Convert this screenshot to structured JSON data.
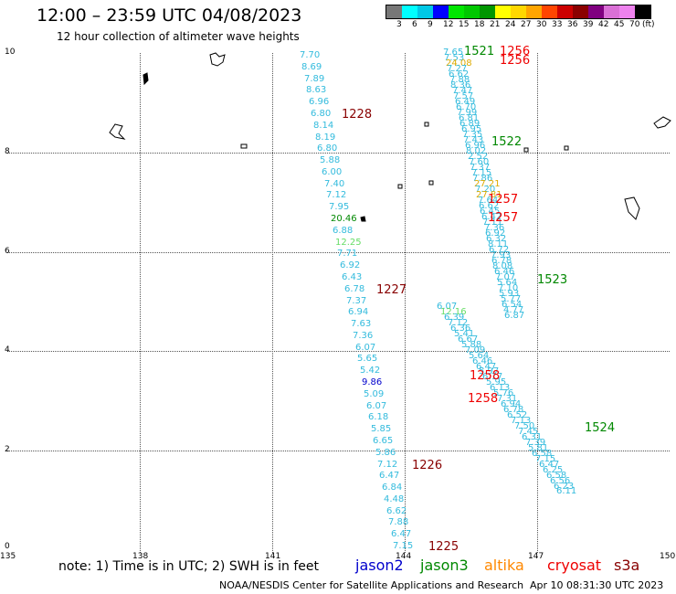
{
  "header": {
    "title": "12:00 – 23:59 UTC 04/08/2023",
    "subtitle": "12 hour collection of altimeter wave heights"
  },
  "colorbar": {
    "colors": [
      "#777777",
      "#00ffff",
      "#00c8e6",
      "#0000ff",
      "#00e600",
      "#00c800",
      "#009600",
      "#ffff00",
      "#ffd700",
      "#ffa500",
      "#ff4500",
      "#cc0000",
      "#8b0000",
      "#800080",
      "#da70d6",
      "#ee82ee",
      "#000000"
    ],
    "labels": [
      "3",
      "6",
      "9",
      "12",
      "15",
      "18",
      "21",
      "24",
      "27",
      "30",
      "33",
      "36",
      "39",
      "42",
      "45",
      "70",
      "(ft)"
    ]
  },
  "map": {
    "lon_labels": [
      "135",
      "138",
      "141",
      "144",
      "147",
      "150"
    ],
    "lat_labels": [
      "10",
      "8",
      "6",
      "4",
      "2",
      "0"
    ],
    "swh_values": [
      {
        "t": "7.70",
        "c": "#33bbdd"
      },
      {
        "t": "8.69",
        "c": "#33bbdd"
      },
      {
        "t": "7.89",
        "c": "#33bbdd"
      },
      {
        "t": "8.63",
        "c": "#33bbdd"
      },
      {
        "t": "6.96",
        "c": "#33bbdd"
      },
      {
        "t": "6.80",
        "c": "#33bbdd"
      },
      {
        "t": "8.14",
        "c": "#33bbdd"
      },
      {
        "t": "8.19",
        "c": "#33bbdd"
      },
      {
        "t": "6.80",
        "c": "#33bbdd"
      },
      {
        "t": "5.88",
        "c": "#33bbdd"
      },
      {
        "t": "6.00",
        "c": "#33bbdd"
      },
      {
        "t": "7.40",
        "c": "#33bbdd"
      },
      {
        "t": "7.12",
        "c": "#33bbdd"
      },
      {
        "t": "7.95",
        "c": "#33bbdd"
      },
      {
        "t": "20.46",
        "c": "#008800"
      },
      {
        "t": "6.88",
        "c": "#33bbdd"
      },
      {
        "t": "12.25",
        "c": "#66dd66"
      },
      {
        "t": "7.71",
        "c": "#33bbdd"
      },
      {
        "t": "6.92",
        "c": "#33bbdd"
      },
      {
        "t": "6.43",
        "c": "#33bbdd"
      },
      {
        "t": "6.78",
        "c": "#33bbdd"
      },
      {
        "t": "7.37",
        "c": "#33bbdd"
      },
      {
        "t": "6.94",
        "c": "#33bbdd"
      },
      {
        "t": "7.63",
        "c": "#33bbdd"
      },
      {
        "t": "7.36",
        "c": "#33bbdd"
      },
      {
        "t": "6.07",
        "c": "#33bbdd"
      },
      {
        "t": "5.65",
        "c": "#33bbdd"
      },
      {
        "t": "5.42",
        "c": "#33bbdd"
      },
      {
        "t": "9.86",
        "c": "#0000cc"
      },
      {
        "t": "5.09",
        "c": "#33bbdd"
      },
      {
        "t": "6.07",
        "c": "#33bbdd"
      },
      {
        "t": "6.18",
        "c": "#33bbdd"
      },
      {
        "t": "5.85",
        "c": "#33bbdd"
      },
      {
        "t": "6.65",
        "c": "#33bbdd"
      },
      {
        "t": "5.86",
        "c": "#33bbdd"
      },
      {
        "t": "7.12",
        "c": "#33bbdd"
      },
      {
        "t": "6.47",
        "c": "#33bbdd"
      },
      {
        "t": "6.84",
        "c": "#33bbdd"
      },
      {
        "t": "4.48",
        "c": "#33bbdd"
      },
      {
        "t": "6.62",
        "c": "#33bbdd"
      },
      {
        "t": "7.88",
        "c": "#33bbdd"
      },
      {
        "t": "6.47",
        "c": "#33bbdd"
      },
      {
        "t": "7.15",
        "c": "#33bbdd"
      },
      {
        "t": "7.65",
        "c": "#33bbdd"
      },
      {
        "t": "7.53",
        "c": "#33bbdd"
      },
      {
        "t": "24.08",
        "c": "#ddaa00"
      },
      {
        "t": "7.27",
        "c": "#33bbdd"
      },
      {
        "t": "6.62",
        "c": "#33bbdd"
      },
      {
        "t": "7.88",
        "c": "#33bbdd"
      },
      {
        "t": "8.36",
        "c": "#33bbdd"
      },
      {
        "t": "7.47",
        "c": "#33bbdd"
      },
      {
        "t": "7.57",
        "c": "#33bbdd"
      },
      {
        "t": "6.49",
        "c": "#33bbdd"
      },
      {
        "t": "6.70",
        "c": "#33bbdd"
      },
      {
        "t": "7.99",
        "c": "#33bbdd"
      },
      {
        "t": "6.81",
        "c": "#33bbdd"
      },
      {
        "t": "6.89",
        "c": "#33bbdd"
      },
      {
        "t": "6.95",
        "c": "#33bbdd"
      },
      {
        "t": "7.35",
        "c": "#33bbdd"
      },
      {
        "t": "7.43",
        "c": "#33bbdd"
      },
      {
        "t": "6.96",
        "c": "#33bbdd"
      },
      {
        "t": "8.02",
        "c": "#33bbdd"
      },
      {
        "t": "2.52",
        "c": "#33bbdd"
      },
      {
        "t": "7.60",
        "c": "#33bbdd"
      },
      {
        "t": "7.37",
        "c": "#33bbdd"
      },
      {
        "t": "7.15",
        "c": "#33bbdd"
      },
      {
        "t": "7.86",
        "c": "#33bbdd"
      },
      {
        "t": "27.21",
        "c": "#ddaa00"
      },
      {
        "t": "7.20",
        "c": "#33bbdd"
      },
      {
        "t": "27.81",
        "c": "#ddaa00"
      },
      {
        "t": "7.64",
        "c": "#33bbdd"
      },
      {
        "t": "6.62",
        "c": "#33bbdd"
      },
      {
        "t": "6.45",
        "c": "#33bbdd"
      },
      {
        "t": "6.42",
        "c": "#33bbdd"
      },
      {
        "t": "7.11",
        "c": "#33bbdd"
      },
      {
        "t": "7.36",
        "c": "#33bbdd"
      },
      {
        "t": "6.92",
        "c": "#33bbdd"
      },
      {
        "t": "6.32",
        "c": "#33bbdd"
      },
      {
        "t": "8.11",
        "c": "#33bbdd"
      },
      {
        "t": "6.72",
        "c": "#33bbdd"
      },
      {
        "t": "7.93",
        "c": "#33bbdd"
      },
      {
        "t": "6.78",
        "c": "#33bbdd"
      },
      {
        "t": "8.08",
        "c": "#33bbdd"
      },
      {
        "t": "6.46",
        "c": "#33bbdd"
      },
      {
        "t": "7.07",
        "c": "#33bbdd"
      },
      {
        "t": "5.64",
        "c": "#33bbdd"
      },
      {
        "t": "7.10",
        "c": "#33bbdd"
      },
      {
        "t": "5.93",
        "c": "#33bbdd"
      },
      {
        "t": "5.77",
        "c": "#33bbdd"
      },
      {
        "t": "6.54",
        "c": "#33bbdd"
      },
      {
        "t": "4.77",
        "c": "#33bbdd"
      },
      {
        "t": "6.87",
        "c": "#33bbdd"
      },
      {
        "t": "6.07",
        "c": "#33bbdd"
      },
      {
        "t": "12.16",
        "c": "#66dd66"
      },
      {
        "t": "6.39",
        "c": "#33bbdd"
      },
      {
        "t": "7.12",
        "c": "#33bbdd"
      },
      {
        "t": "6.36",
        "c": "#33bbdd"
      },
      {
        "t": "5.41",
        "c": "#33bbdd"
      },
      {
        "t": "6.67",
        "c": "#33bbdd"
      },
      {
        "t": "5.88",
        "c": "#33bbdd"
      },
      {
        "t": "7.09",
        "c": "#33bbdd"
      },
      {
        "t": "5.64",
        "c": "#33bbdd"
      },
      {
        "t": "6.46",
        "c": "#33bbdd"
      },
      {
        "t": "6.47",
        "c": "#33bbdd"
      },
      {
        "t": "5.97",
        "c": "#33bbdd"
      },
      {
        "t": "6.17",
        "c": "#33bbdd"
      },
      {
        "t": "5.95",
        "c": "#33bbdd"
      },
      {
        "t": "6.13",
        "c": "#33bbdd"
      },
      {
        "t": "5.76",
        "c": "#33bbdd"
      },
      {
        "t": "7.31",
        "c": "#33bbdd"
      },
      {
        "t": "6.94",
        "c": "#33bbdd"
      },
      {
        "t": "6.78",
        "c": "#33bbdd"
      },
      {
        "t": "6.52",
        "c": "#33bbdd"
      },
      {
        "t": "7.13",
        "c": "#33bbdd"
      },
      {
        "t": "7.50",
        "c": "#33bbdd"
      },
      {
        "t": "7.45",
        "c": "#33bbdd"
      },
      {
        "t": "6.31",
        "c": "#33bbdd"
      },
      {
        "t": "7.39",
        "c": "#33bbdd"
      },
      {
        "t": "5.81",
        "c": "#33bbdd"
      },
      {
        "t": "6.58",
        "c": "#33bbdd"
      },
      {
        "t": "7.15",
        "c": "#33bbdd"
      },
      {
        "t": "6.47",
        "c": "#33bbdd"
      },
      {
        "t": "6.25",
        "c": "#33bbdd"
      },
      {
        "t": "6.58",
        "c": "#33bbdd"
      },
      {
        "t": "6.56",
        "c": "#33bbdd"
      },
      {
        "t": "6.23",
        "c": "#33bbdd"
      },
      {
        "t": "6.11",
        "c": "#33bbdd"
      }
    ],
    "pass_labels": [
      {
        "t": "1521",
        "c": "#008800"
      },
      {
        "t": "1256",
        "c": "#ee0000"
      },
      {
        "t": "1256",
        "c": "#ee0000"
      },
      {
        "t": "1228",
        "c": "#880000"
      },
      {
        "t": "1522",
        "c": "#008800"
      },
      {
        "t": "1257",
        "c": "#ee0000"
      },
      {
        "t": "1257",
        "c": "#ee0000"
      },
      {
        "t": "1523",
        "c": "#008800"
      },
      {
        "t": "1227",
        "c": "#880000"
      },
      {
        "t": "1258",
        "c": "#ee0000"
      },
      {
        "t": "1258",
        "c": "#ee0000"
      },
      {
        "t": "1524",
        "c": "#008800"
      },
      {
        "t": "1226",
        "c": "#880000"
      },
      {
        "t": "1225",
        "c": "#880000"
      }
    ]
  },
  "footer": {
    "note": "note: 1) Time is in UTC; 2) SWH is in feet",
    "satellites": [
      {
        "name": "jason2",
        "color": "#0000cc"
      },
      {
        "name": "jason3",
        "color": "#008800"
      },
      {
        "name": "altika",
        "color": "#ff8800"
      },
      {
        "name": "cryosat",
        "color": "#ee0000"
      },
      {
        "name": "s3a",
        "color": "#880000"
      }
    ],
    "credit": "NOAA/NESDIS Center for Satellite Applications and Research",
    "date": "Apr 10 08:31:30 UTC 2023"
  }
}
